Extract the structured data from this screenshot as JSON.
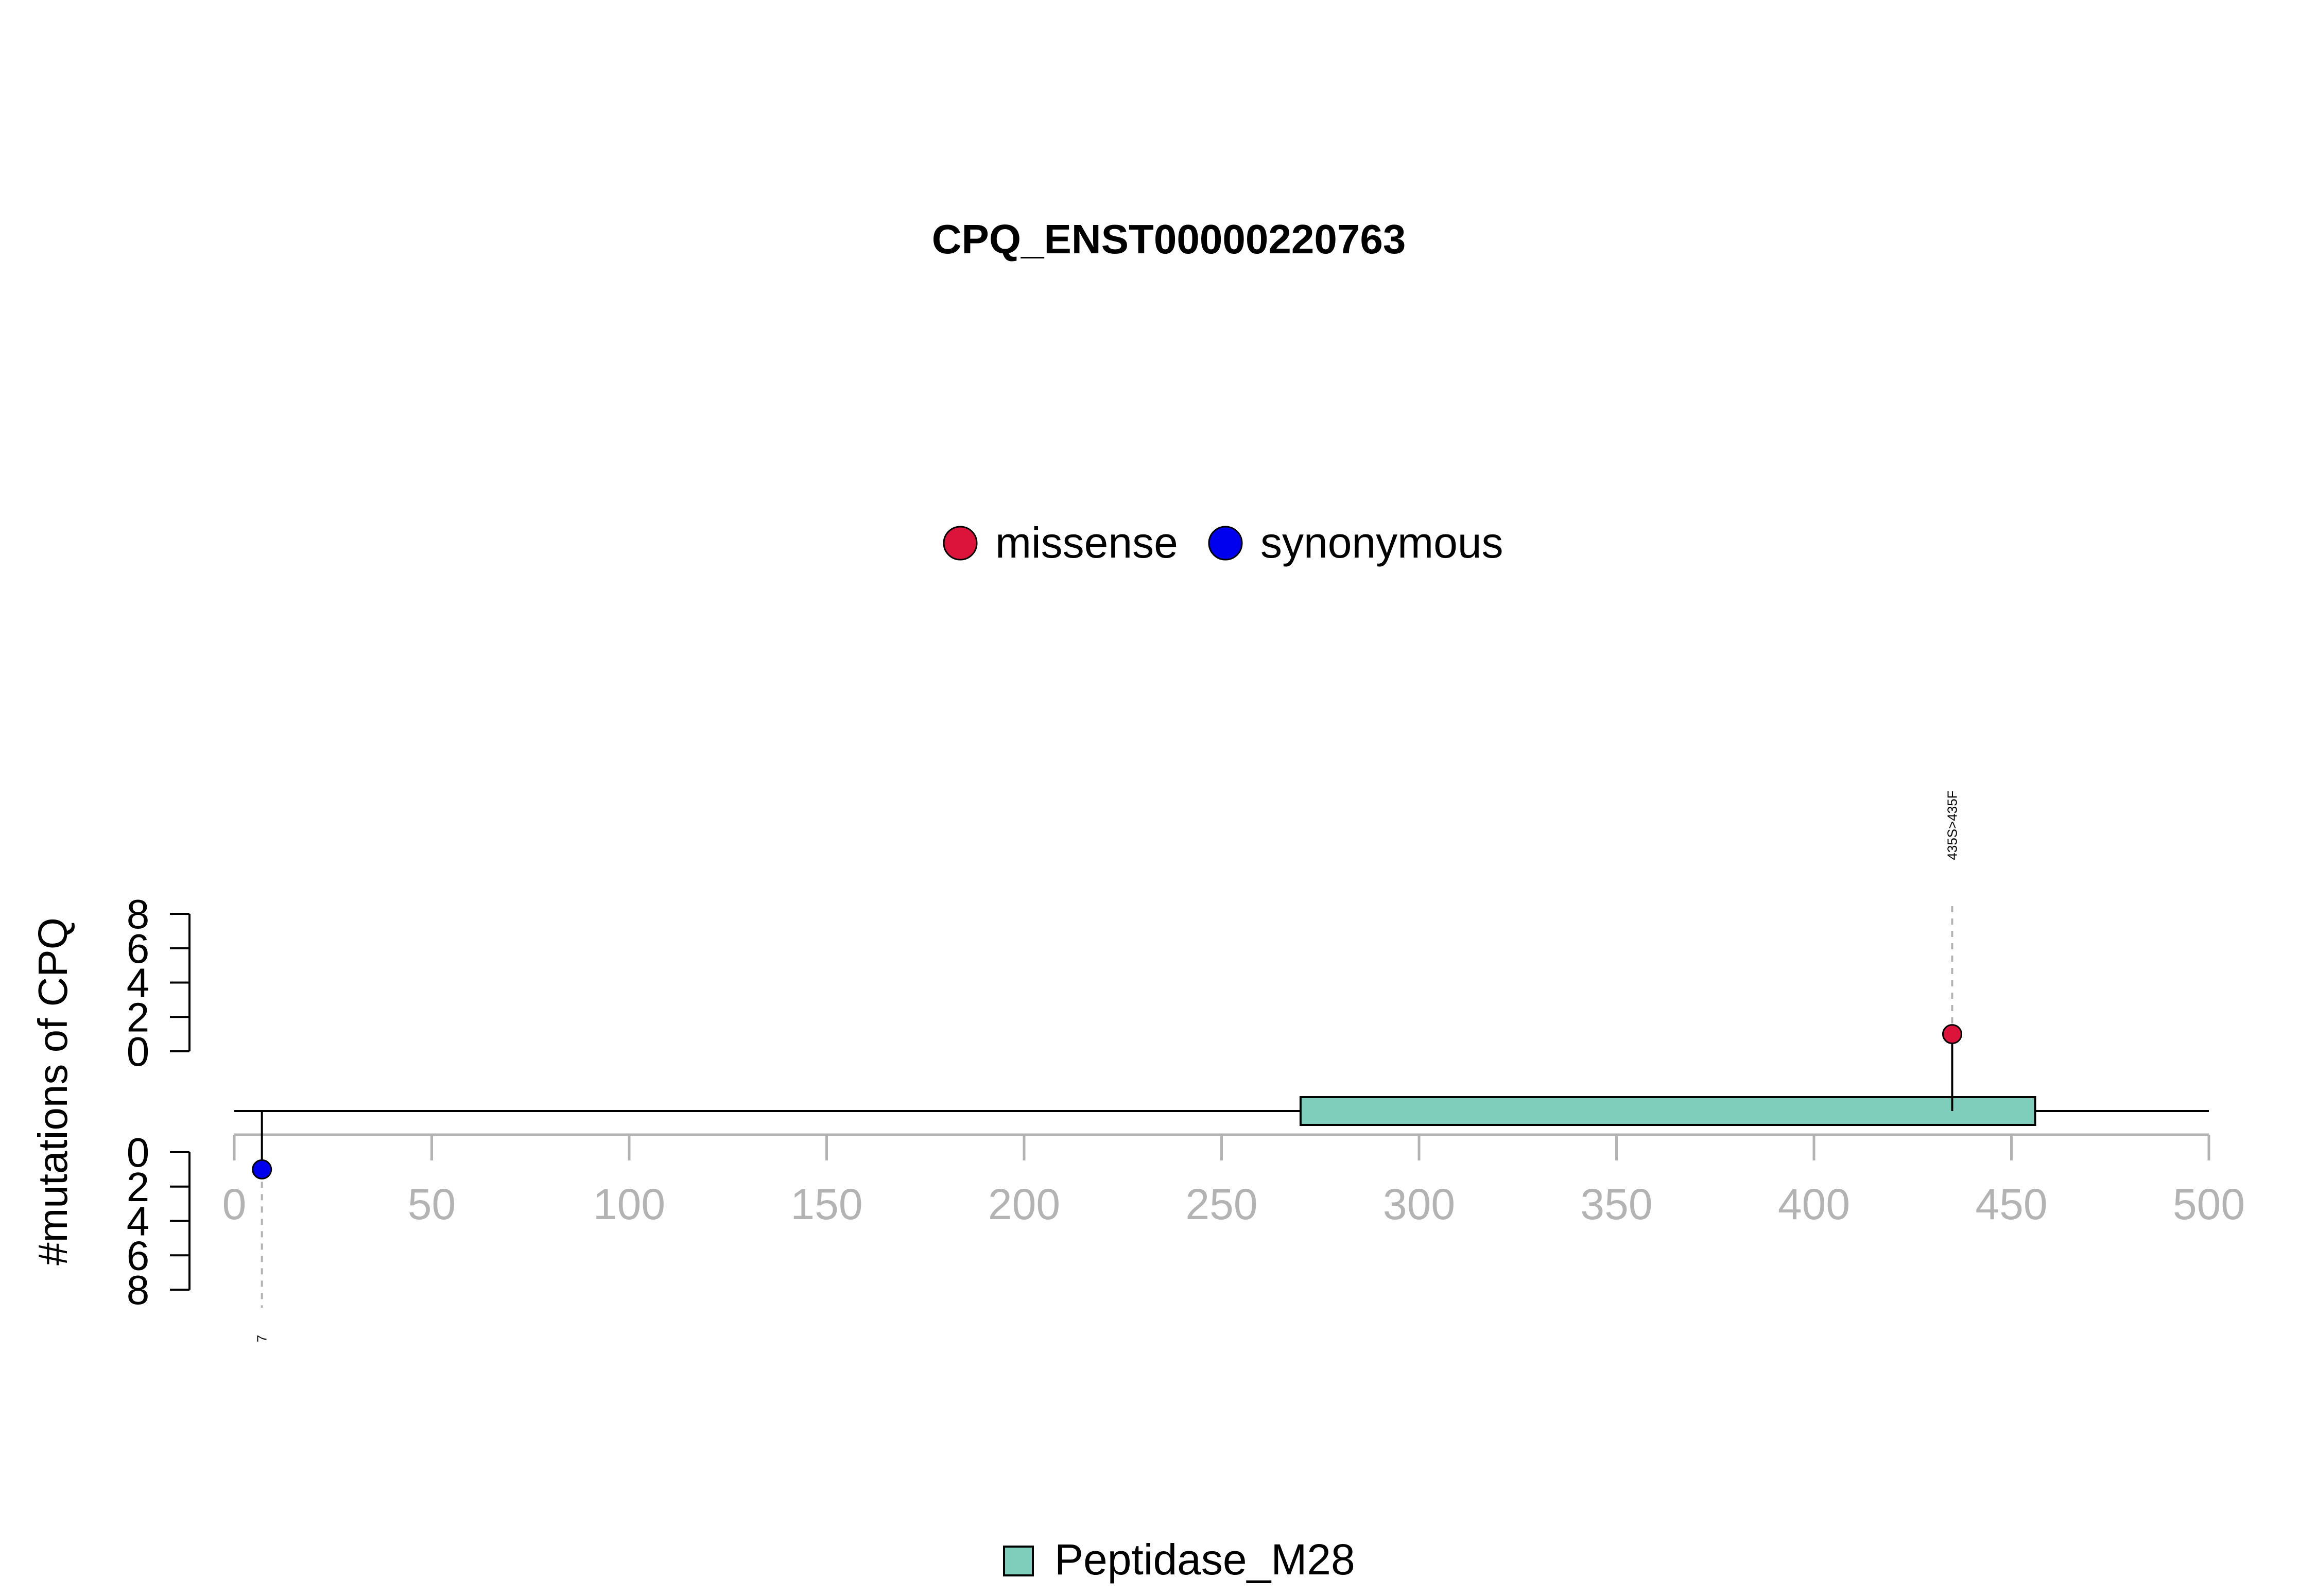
{
  "chart_data": {
    "type": "lollipop",
    "title": "CPQ_ENST00000220763",
    "ylabel": "#mutations of CPQ",
    "x_axis": {
      "ticks": [
        0,
        50,
        100,
        150,
        200,
        250,
        300,
        350,
        400,
        450,
        500
      ],
      "range": [
        0,
        500
      ]
    },
    "y_axis_top": {
      "ticks": [
        0,
        2,
        4,
        6,
        8
      ],
      "range": [
        0,
        8
      ]
    },
    "y_axis_bottom": {
      "ticks": [
        0,
        2,
        4,
        6,
        8
      ],
      "range": [
        0,
        8
      ]
    },
    "protein_length": 500,
    "mutation_legend": [
      {
        "name": "missense",
        "color": "#DC143C"
      },
      {
        "name": "synonymous",
        "color": "#0000EE"
      }
    ],
    "mutations": [
      {
        "position": 435,
        "label": "435S>435F",
        "type": "missense",
        "strand": "top",
        "count": 1,
        "color": "#DC143C"
      },
      {
        "position": 7,
        "label": "7",
        "type": "synonymous",
        "strand": "bottom",
        "count": 1,
        "color": "#0000EE"
      }
    ],
    "domains": [
      {
        "name": "Peptidase_M28",
        "start": 270,
        "end": 456,
        "color": "#7FCDBB"
      }
    ],
    "grid": false
  }
}
